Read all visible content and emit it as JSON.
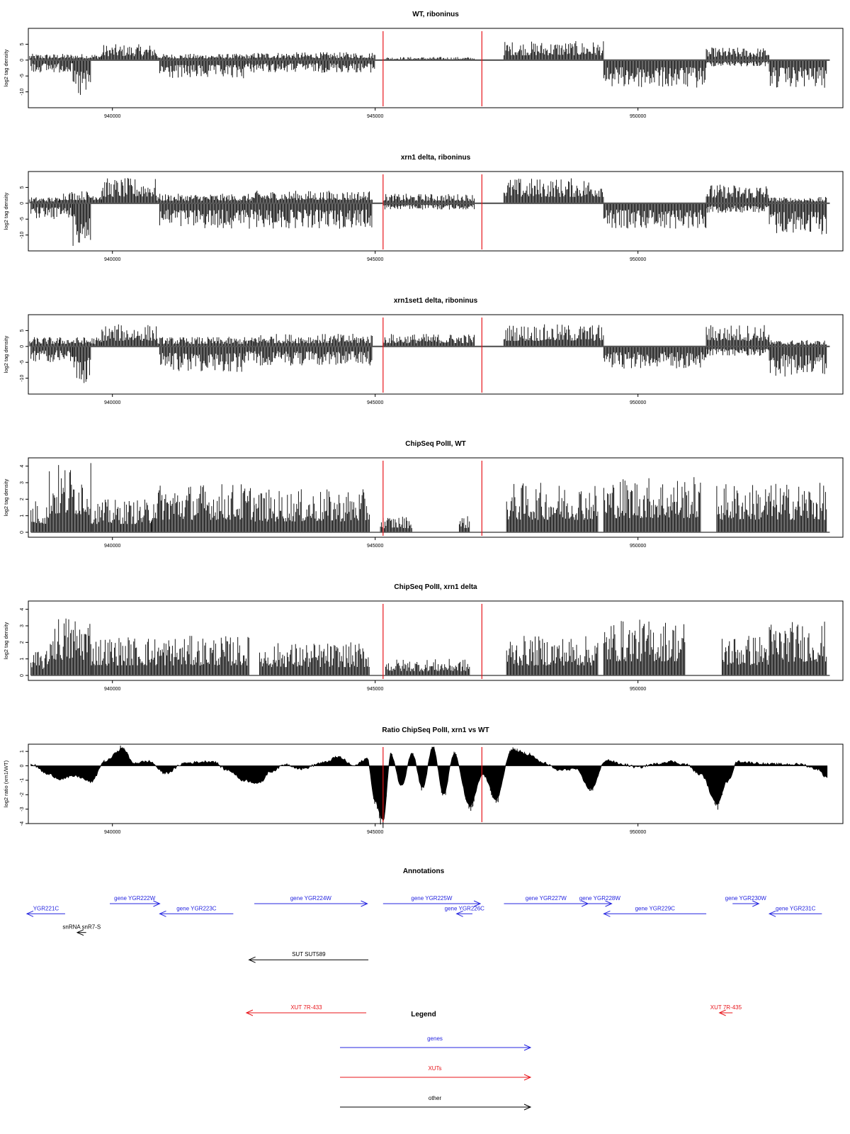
{
  "chart_data": [
    {
      "type": "bar",
      "title": "WT, riboninus",
      "ylabel": "log2 tag density",
      "ylim": [
        -15,
        10
      ],
      "yticks": [
        "-10",
        "-5",
        "0",
        "5"
      ],
      "xticks": [
        "940000",
        "945000",
        "950000"
      ],
      "xlim": [
        938400,
        953900
      ],
      "marker_positions": [
        945150,
        947030
      ],
      "marker_color": "#e8141a",
      "positive_regions": [
        {
          "start": 938400,
          "end": 939000,
          "level": 2
        },
        {
          "start": 939000,
          "end": 939800,
          "level": 2
        },
        {
          "start": 939800,
          "end": 940850,
          "level": 5
        },
        {
          "start": 940850,
          "end": 942700,
          "level": 2
        },
        {
          "start": 942700,
          "end": 945000,
          "level": 2.5
        },
        {
          "start": 945150,
          "end": 946900,
          "level": 1
        },
        {
          "start": 947450,
          "end": 949350,
          "level": 6
        },
        {
          "start": 951300,
          "end": 952500,
          "level": 4
        }
      ],
      "negative_regions": [
        {
          "start": 938450,
          "end": 939250,
          "level": -4
        },
        {
          "start": 939250,
          "end": 939600,
          "level": -13
        },
        {
          "start": 940900,
          "end": 942500,
          "level": -6
        },
        {
          "start": 942500,
          "end": 945000,
          "level": -4
        },
        {
          "start": 949350,
          "end": 951300,
          "level": -9
        },
        {
          "start": 951300,
          "end": 952500,
          "level": -2
        },
        {
          "start": 952500,
          "end": 953600,
          "level": -9
        }
      ]
    },
    {
      "type": "bar",
      "title": "xrn1 delta, riboninus",
      "ylabel": "log2 tag density",
      "ylim": [
        -15,
        10
      ],
      "yticks": [
        "-10",
        "-5",
        "0",
        "5"
      ],
      "xticks": [
        "940000",
        "945000",
        "950000"
      ],
      "xlim": [
        938400,
        953900
      ],
      "marker_positions": [
        945150,
        947030
      ],
      "marker_color": "#e8141a",
      "positive_regions": [
        {
          "start": 938400,
          "end": 939000,
          "level": 2
        },
        {
          "start": 939000,
          "end": 939800,
          "level": 4
        },
        {
          "start": 939800,
          "end": 940850,
          "level": 8
        },
        {
          "start": 940850,
          "end": 942700,
          "level": 3
        },
        {
          "start": 942700,
          "end": 944950,
          "level": 4
        },
        {
          "start": 945150,
          "end": 946900,
          "level": 3
        },
        {
          "start": 947450,
          "end": 949350,
          "level": 8
        },
        {
          "start": 951300,
          "end": 952500,
          "level": 6
        },
        {
          "start": 952500,
          "end": 953600,
          "level": 2
        }
      ],
      "negative_regions": [
        {
          "start": 938450,
          "end": 939250,
          "level": -5
        },
        {
          "start": 939250,
          "end": 939600,
          "level": -14
        },
        {
          "start": 940900,
          "end": 942500,
          "level": -8
        },
        {
          "start": 942500,
          "end": 944950,
          "level": -8
        },
        {
          "start": 945150,
          "end": 946900,
          "level": -2
        },
        {
          "start": 949350,
          "end": 951300,
          "level": -8
        },
        {
          "start": 951300,
          "end": 952500,
          "level": -3
        },
        {
          "start": 952500,
          "end": 953600,
          "level": -10
        }
      ]
    },
    {
      "type": "bar",
      "title": "xrn1set1 delta, riboninus",
      "ylabel": "log2 tag density",
      "ylim": [
        -15,
        10
      ],
      "yticks": [
        "-10",
        "-5",
        "0",
        "5"
      ],
      "xticks": [
        "940000",
        "945000",
        "950000"
      ],
      "xlim": [
        938400,
        953900
      ],
      "marker_positions": [
        945150,
        947030
      ],
      "marker_color": "#e8141a",
      "positive_regions": [
        {
          "start": 938400,
          "end": 939000,
          "level": 3
        },
        {
          "start": 939000,
          "end": 939800,
          "level": 3
        },
        {
          "start": 939800,
          "end": 940850,
          "level": 7
        },
        {
          "start": 940850,
          "end": 942700,
          "level": 3
        },
        {
          "start": 942700,
          "end": 944950,
          "level": 4
        },
        {
          "start": 945150,
          "end": 946900,
          "level": 4
        },
        {
          "start": 947450,
          "end": 949350,
          "level": 7
        },
        {
          "start": 951300,
          "end": 952500,
          "level": 7
        },
        {
          "start": 952500,
          "end": 953600,
          "level": 2
        }
      ],
      "negative_regions": [
        {
          "start": 938450,
          "end": 939250,
          "level": -5
        },
        {
          "start": 939250,
          "end": 939600,
          "level": -12
        },
        {
          "start": 940900,
          "end": 942500,
          "level": -8
        },
        {
          "start": 942500,
          "end": 944950,
          "level": -6
        },
        {
          "start": 949350,
          "end": 951300,
          "level": -7
        },
        {
          "start": 951300,
          "end": 952500,
          "level": -3
        },
        {
          "start": 952500,
          "end": 953600,
          "level": -10
        }
      ]
    },
    {
      "type": "bar",
      "title": "ChipSeq PolII, WT",
      "ylabel": "log2 tag density",
      "ylim": [
        -0.3,
        4.5
      ],
      "yticks": [
        "0",
        "1",
        "2",
        "3",
        "4"
      ],
      "xticks": [
        "940000",
        "945000",
        "950000"
      ],
      "xlim": [
        938400,
        953900
      ],
      "marker_positions": [
        945150,
        947030
      ],
      "marker_color": "#e8141a",
      "positive_regions": [
        {
          "start": 938450,
          "end": 938800,
          "level": 2
        },
        {
          "start": 938800,
          "end": 939600,
          "level": 4.2
        },
        {
          "start": 939600,
          "end": 940750,
          "level": 2
        },
        {
          "start": 940750,
          "end": 942700,
          "level": 3
        },
        {
          "start": 942700,
          "end": 944900,
          "level": 2.6
        },
        {
          "start": 945100,
          "end": 945700,
          "level": 1
        },
        {
          "start": 946600,
          "end": 946800,
          "level": 1
        },
        {
          "start": 947500,
          "end": 949250,
          "level": 3
        },
        {
          "start": 949350,
          "end": 951200,
          "level": 3.4
        },
        {
          "start": 951500,
          "end": 952500,
          "level": 3
        },
        {
          "start": 952500,
          "end": 953600,
          "level": 3
        }
      ],
      "negative_regions": []
    },
    {
      "type": "bar",
      "title": "ChipSeq PolII, xrn1 delta",
      "ylabel": "log2 tag density",
      "ylim": [
        -0.3,
        4.5
      ],
      "yticks": [
        "0",
        "1",
        "2",
        "3",
        "4"
      ],
      "xticks": [
        "940000",
        "945000",
        "950000"
      ],
      "xlim": [
        938400,
        953900
      ],
      "marker_positions": [
        945150,
        947030
      ],
      "marker_color": "#e8141a",
      "positive_regions": [
        {
          "start": 938450,
          "end": 938800,
          "level": 1.5
        },
        {
          "start": 938800,
          "end": 939600,
          "level": 3.7
        },
        {
          "start": 939600,
          "end": 942600,
          "level": 2.4
        },
        {
          "start": 942800,
          "end": 944900,
          "level": 2
        },
        {
          "start": 945200,
          "end": 946800,
          "level": 1
        },
        {
          "start": 947500,
          "end": 949250,
          "level": 2.4
        },
        {
          "start": 949350,
          "end": 950900,
          "level": 3.4
        },
        {
          "start": 951600,
          "end": 952500,
          "level": 2.5
        },
        {
          "start": 952500,
          "end": 953600,
          "level": 3.3
        }
      ],
      "negative_regions": []
    },
    {
      "type": "area",
      "title": "Ratio ChipSeq PolII, xrn1 vs WT",
      "ylabel": "log2 ratio (xrn1/WT)",
      "ylim": [
        -4,
        1.5
      ],
      "yticks": [
        "-4",
        "-3",
        "-2",
        "-1",
        "0",
        "1"
      ],
      "xticks": [
        "940000",
        "945000",
        "950000"
      ],
      "xlim": [
        938400,
        953900
      ],
      "marker_positions": [
        945150,
        947030
      ],
      "marker_color": "#e8141a",
      "x": [
        938450,
        938800,
        939000,
        939300,
        939600,
        939850,
        940200,
        940400,
        940700,
        941000,
        941400,
        941900,
        942200,
        942500,
        942800,
        943000,
        943300,
        943600,
        944000,
        944300,
        944600,
        944850,
        945000,
        945150,
        945300,
        945500,
        945700,
        945900,
        946100,
        946300,
        946500,
        946800,
        947050,
        947300,
        947600,
        947900,
        948200,
        948500,
        948800,
        949100,
        949400,
        949700,
        950000,
        950300,
        950600,
        950900,
        951200,
        951500,
        951700,
        951900,
        952200,
        952500,
        952800,
        953100,
        953400,
        953600
      ],
      "y": [
        0.1,
        -0.6,
        -0.9,
        -0.7,
        -1.1,
        0.3,
        1.2,
        0.2,
        0.3,
        -0.5,
        0.2,
        0.3,
        -0.3,
        -1.0,
        -1.2,
        -0.4,
        0.1,
        -0.2,
        0.2,
        0.6,
        0.0,
        0.5,
        -2.5,
        -3.8,
        0.8,
        -1.4,
        0.9,
        -1.5,
        1.3,
        -2.0,
        0.8,
        -2.8,
        -0.6,
        -2.3,
        1.1,
        0.8,
        0.2,
        -0.3,
        -0.2,
        -1.6,
        0.4,
        0.1,
        -0.1,
        0.1,
        0.3,
        0.1,
        -0.6,
        -2.6,
        -1.1,
        0.3,
        0.2,
        0.1,
        0.1,
        0.1,
        -0.2,
        -0.8
      ]
    }
  ],
  "annotations": {
    "title": "Annotations",
    "xlim": [
      938400,
      953900
    ],
    "items": [
      {
        "label": "YGR221C",
        "color": "#2424e0",
        "start": 938100,
        "end": 939100,
        "dir": "left",
        "row": 0.65
      },
      {
        "label": "gene YGR222W",
        "color": "#2424e0",
        "start": 939950,
        "end": 940900,
        "dir": "right",
        "row": 0
      },
      {
        "label": "gene YGR223C",
        "color": "#2424e0",
        "start": 940900,
        "end": 942300,
        "dir": "left",
        "row": 0.65
      },
      {
        "label": "gene YGR224W",
        "color": "#2424e0",
        "start": 942700,
        "end": 944850,
        "dir": "right",
        "row": 0
      },
      {
        "label": "gene YGR225W",
        "color": "#2424e0",
        "start": 945150,
        "end": 947000,
        "dir": "right",
        "row": 0
      },
      {
        "label": "gene YGR226C",
        "color": "#2424e0",
        "start": 946550,
        "end": 946850,
        "dir": "left",
        "row": 0.65
      },
      {
        "label": "gene YGR227W",
        "color": "#2424e0",
        "start": 947450,
        "end": 949050,
        "dir": "right",
        "row": 0
      },
      {
        "label": "gene YGR228W",
        "color": "#2424e0",
        "start": 949050,
        "end": 949500,
        "dir": "right",
        "row": 0
      },
      {
        "label": "gene YGR229C",
        "color": "#2424e0",
        "start": 949350,
        "end": 951300,
        "dir": "left",
        "row": 0.65
      },
      {
        "label": "gene YGR230W",
        "color": "#2424e0",
        "start": 951800,
        "end": 952300,
        "dir": "right",
        "row": 0
      },
      {
        "label": "gene YGR231C",
        "color": "#2424e0",
        "start": 952500,
        "end": 953500,
        "dir": "left",
        "row": 0.65
      },
      {
        "label": "snRNA snR7-S",
        "color": "#000000",
        "start": 939330,
        "end": 939500,
        "dir": "left",
        "row": 1.85
      },
      {
        "label": "SUT SUT589",
        "color": "#000000",
        "start": 942600,
        "end": 944870,
        "dir": "left",
        "row": 3.6
      },
      {
        "label": "XUT 7R-433",
        "color": "#e8141a",
        "start": 942550,
        "end": 944830,
        "dir": "left",
        "row": 7.0
      },
      {
        "label": "XUT 7R-435",
        "color": "#e8141a",
        "start": 951550,
        "end": 951800,
        "dir": "left",
        "row": 7.0
      }
    ]
  },
  "legend": {
    "title": "Legend",
    "items": [
      {
        "label": "genes",
        "color": "#2424e0"
      },
      {
        "label": "XUTs",
        "color": "#e8141a"
      },
      {
        "label": "other",
        "color": "#000000"
      }
    ]
  }
}
